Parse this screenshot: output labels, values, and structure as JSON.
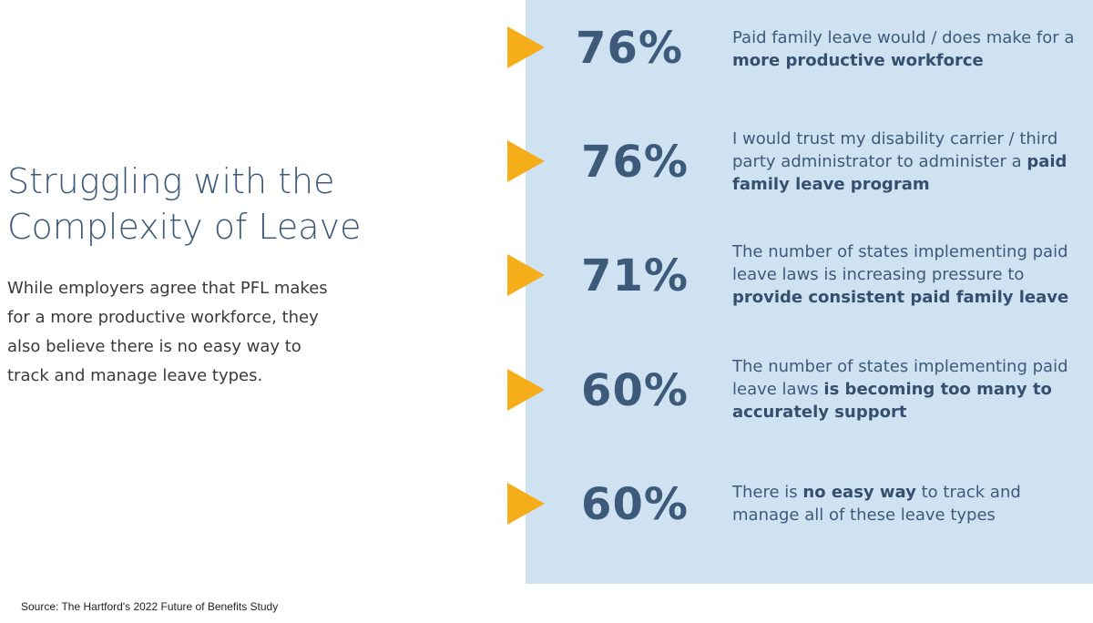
{
  "title_lines": [
    "Struggling with the",
    "Complexity of Leave"
  ],
  "intro_lines": [
    "While employers agree that PFL makes",
    "for a more productive workforce, they",
    "also believe there is no easy way to",
    "track and manage leave types."
  ],
  "stats": [
    {
      "value": "76%",
      "parts": [
        {
          "text": "Paid family leave would / does make for a ",
          "bold": false
        },
        {
          "text": "more productive workforce",
          "bold": true
        }
      ]
    },
    {
      "value": "76%",
      "parts": [
        {
          "text": "I would trust my disability carrier / third party administrator to administer a ",
          "bold": false
        },
        {
          "text": "paid family leave program",
          "bold": true
        }
      ]
    },
    {
      "value": "71%",
      "parts": [
        {
          "text": "The number of states implementing paid leave laws is increasing pressure to ",
          "bold": false
        },
        {
          "text": "provide consistent paid family leave",
          "bold": true
        }
      ]
    },
    {
      "value": "60%",
      "parts": [
        {
          "text": "The number of states implementing paid leave laws ",
          "bold": false
        },
        {
          "text": "is becoming too many to accurately support",
          "bold": true
        }
      ]
    },
    {
      "value": "60%",
      "parts": [
        {
          "text": "There is ",
          "bold": false
        },
        {
          "text": "no easy way",
          "bold": true
        },
        {
          "text": " to track and manage all of these leave types",
          "bold": false
        }
      ]
    }
  ],
  "source": "Source: The Hartford's 2022  Future of Benefits Study",
  "colors": {
    "accent_arrow": "#f5ae1a",
    "panel_bg": "#cfe2f2",
    "text_blue": "#3d5a7a"
  }
}
